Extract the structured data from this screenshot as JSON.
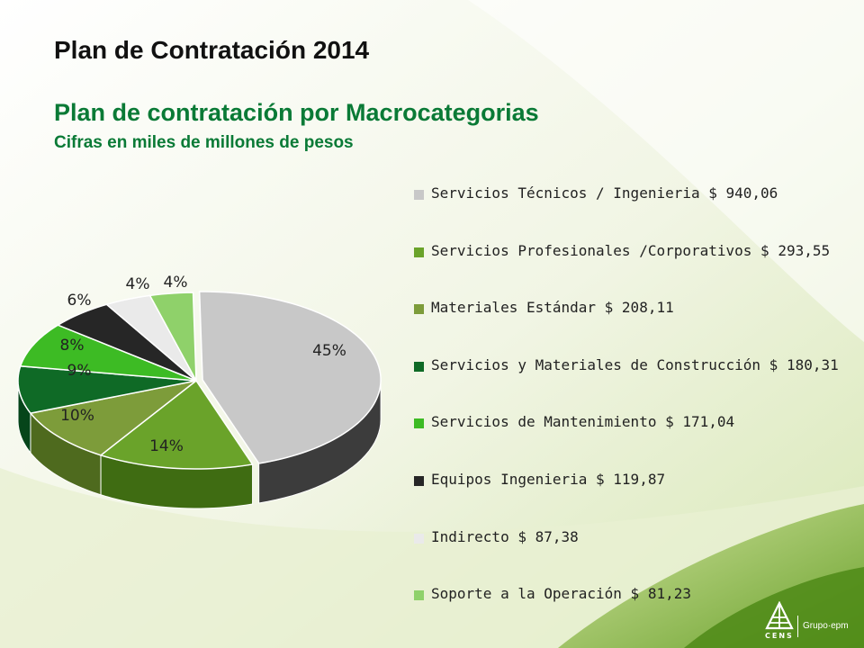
{
  "header": {
    "title": "Plan de Contratación 2014",
    "subtitle": "Plan de contratación por Macrocategorias",
    "caption": "Cifras en miles de millones de pesos"
  },
  "chart_data": {
    "type": "pie",
    "style": "3d-exploded",
    "title": "Plan de contratación por Macrocategorias",
    "units": "miles de millones de pesos",
    "slices": [
      {
        "name": "Servicios Técnicos / Ingenieria",
        "value": 940.06,
        "value_label": "$ 940,06",
        "percent_label": "45%",
        "color": "#c8c8c8",
        "side_color": "#3c3c3c"
      },
      {
        "name": "Servicios Profesionales /Corporativos",
        "value": 293.55,
        "value_label": "$ 293,55",
        "percent_label": "14%",
        "color": "#6aa32a",
        "side_color": "#3f6c12"
      },
      {
        "name": "Materiales Estándar",
        "value": 208.11,
        "value_label": "$ 208,11",
        "percent_label": "10%",
        "color": "#7d9c3a",
        "side_color": "#4e6a1e"
      },
      {
        "name": "Servicios y Materiales de Construcción",
        "value": 180.31,
        "value_label": "$ 180,31",
        "percent_label": "9%",
        "color": "#0f6a26",
        "side_color": "#06451a"
      },
      {
        "name": "Servicios de Mantenimiento",
        "value": 171.04,
        "value_label": "$ 171,04",
        "percent_label": "8%",
        "color": "#3dbb24",
        "side_color": "#24811a"
      },
      {
        "name": "Equipos Ingenieria",
        "value": 119.87,
        "value_label": "$ 119,87",
        "percent_label": "6%",
        "color": "#262626",
        "side_color": "#111111"
      },
      {
        "name": "Indirecto",
        "value": 87.38,
        "value_label": "$ 87,38",
        "percent_label": "4%",
        "color": "#eaeaea",
        "side_color": "#b8b8b8"
      },
      {
        "name": "Soporte a la Operación",
        "value": 81.23,
        "value_label": "$ 81,23",
        "percent_label": "4%",
        "color": "#8fd16a",
        "side_color": "#5e9c3a"
      }
    ],
    "legend": "right"
  },
  "logo": {
    "left_text": "CENS",
    "right_text": "Grupo·epm"
  }
}
